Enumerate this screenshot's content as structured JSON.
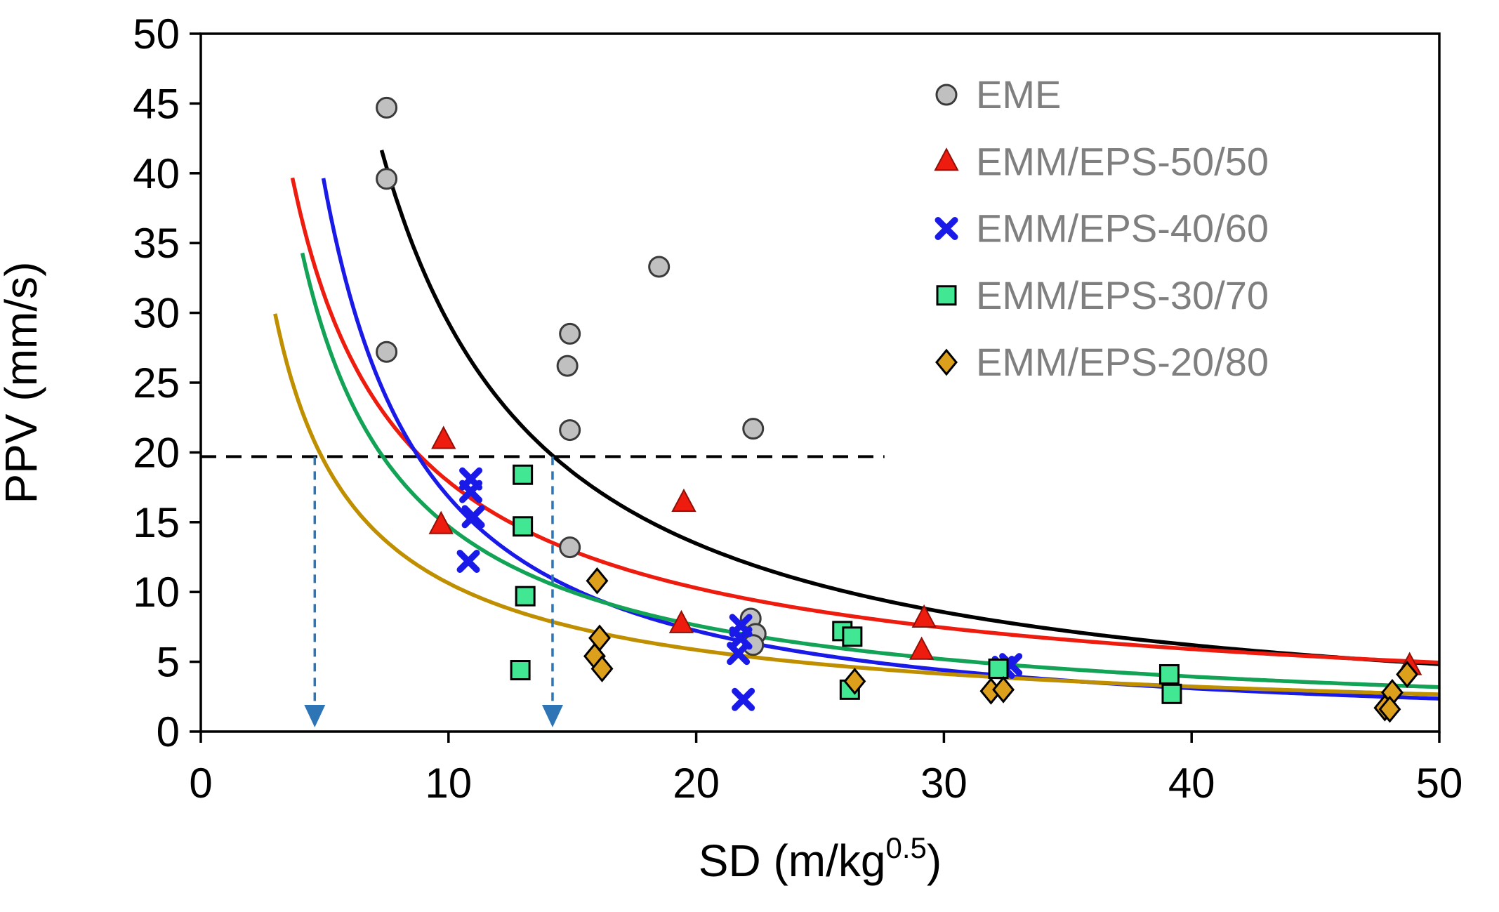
{
  "chart_data": {
    "type": "scatter",
    "title": "",
    "xlabel": "SD (m/kg^0.5)",
    "xlabel_main": "SD (m/kg",
    "xlabel_sup": "0.5",
    "xlabel_close": ")",
    "ylabel": "PPV (mm/s)",
    "xlim": [
      0,
      50
    ],
    "ylim": [
      0,
      50
    ],
    "xticks": [
      0,
      10,
      20,
      30,
      40,
      50
    ],
    "yticks": [
      0,
      5,
      10,
      15,
      20,
      25,
      30,
      35,
      40,
      45,
      50
    ],
    "grid": false,
    "legend_position": "upper-right-inside",
    "legend_text_color": "#7f7f7f",
    "series": [
      {
        "name": "EME",
        "marker": "circle",
        "marker_color": "#c0c0c0",
        "marker_edge": "#3a3a3a",
        "curve_color": "#000000",
        "fit": {
          "model": "power",
          "k": 386,
          "b": 1.12,
          "x_start": 7.3,
          "x_end": 50
        },
        "points": [
          [
            7.5,
            44.7
          ],
          [
            7.5,
            39.6
          ],
          [
            7.5,
            27.2
          ],
          [
            14.9,
            28.5
          ],
          [
            14.8,
            26.2
          ],
          [
            14.9,
            21.6
          ],
          [
            18.5,
            33.3
          ],
          [
            22.3,
            21.7
          ],
          [
            14.9,
            13.2
          ],
          [
            22.2,
            8.1
          ],
          [
            22.4,
            7.0
          ],
          [
            22.3,
            6.2
          ]
        ]
      },
      {
        "name": "EMM/EPS-50/50",
        "marker": "triangle",
        "marker_color": "#ed1c0f",
        "marker_edge": "#8f1008",
        "curve_color": "#ed1c0f",
        "fit": {
          "model": "power",
          "k": 113,
          "b": 0.8,
          "x_start": 3.7,
          "x_end": 50
        },
        "points": [
          [
            9.8,
            20.9
          ],
          [
            9.7,
            14.8
          ],
          [
            19.5,
            16.4
          ],
          [
            19.4,
            7.7
          ],
          [
            29.2,
            8.1
          ],
          [
            29.1,
            5.8
          ],
          [
            48.8,
            4.7
          ]
        ]
      },
      {
        "name": "EMM/EPS-40/60",
        "marker": "x",
        "marker_color": "#1a1ae8",
        "marker_edge": "#1a1ae8",
        "curve_color": "#1a1ae8",
        "fit": {
          "model": "power",
          "k": 279,
          "b": 1.22,
          "x_start": 4.95,
          "x_end": 50
        },
        "points": [
          [
            10.9,
            18.1
          ],
          [
            10.9,
            17.2
          ],
          [
            11.0,
            15.4
          ],
          [
            10.8,
            12.2
          ],
          [
            21.8,
            7.6
          ],
          [
            21.8,
            6.7
          ],
          [
            21.7,
            5.6
          ],
          [
            21.9,
            2.3
          ],
          [
            32.7,
            4.8
          ],
          [
            32.4,
            4.6
          ]
        ]
      },
      {
        "name": "EMM/EPS-30/70",
        "marker": "square",
        "marker_color": "#42e793",
        "marker_edge": "#000000",
        "curve_color": "#12a356",
        "fit": {
          "model": "power",
          "k": 131,
          "b": 0.95,
          "x_start": 4.1,
          "x_end": 50
        },
        "points": [
          [
            13.0,
            18.4
          ],
          [
            13.0,
            14.7
          ],
          [
            13.1,
            9.7
          ],
          [
            12.9,
            4.4
          ],
          [
            25.9,
            7.2
          ],
          [
            26.3,
            6.8
          ],
          [
            26.2,
            3.0
          ],
          [
            32.2,
            4.5
          ],
          [
            39.1,
            4.1
          ],
          [
            39.2,
            2.7
          ]
        ]
      },
      {
        "name": "EMM/EPS-20/80",
        "marker": "diamond",
        "marker_color": "#dda01c",
        "marker_edge": "#000000",
        "curve_color": "#bf8f00",
        "fit": {
          "model": "power",
          "k": 77,
          "b": 0.86,
          "x_start": 3.0,
          "x_end": 50
        },
        "points": [
          [
            16.0,
            10.8
          ],
          [
            16.1,
            6.7
          ],
          [
            15.9,
            5.4
          ],
          [
            16.2,
            4.5
          ],
          [
            26.4,
            3.6
          ],
          [
            31.9,
            2.9
          ],
          [
            32.4,
            3.0
          ],
          [
            48.7,
            4.1
          ],
          [
            48.1,
            2.8
          ],
          [
            47.8,
            1.7
          ],
          [
            48.0,
            1.6
          ]
        ]
      }
    ],
    "annotations": {
      "hline": {
        "y": 19.7,
        "x_start": 0,
        "x_end": 27.6,
        "color": "#000000",
        "style": "dashed"
      },
      "arrows": [
        {
          "x": 4.6,
          "y_from": 19.7,
          "y_tip": 0.3,
          "color": "#2e75b6",
          "style": "dashed"
        },
        {
          "x": 14.2,
          "y_from": 19.7,
          "y_tip": 0.3,
          "color": "#2e75b6",
          "style": "dashed"
        }
      ]
    }
  }
}
